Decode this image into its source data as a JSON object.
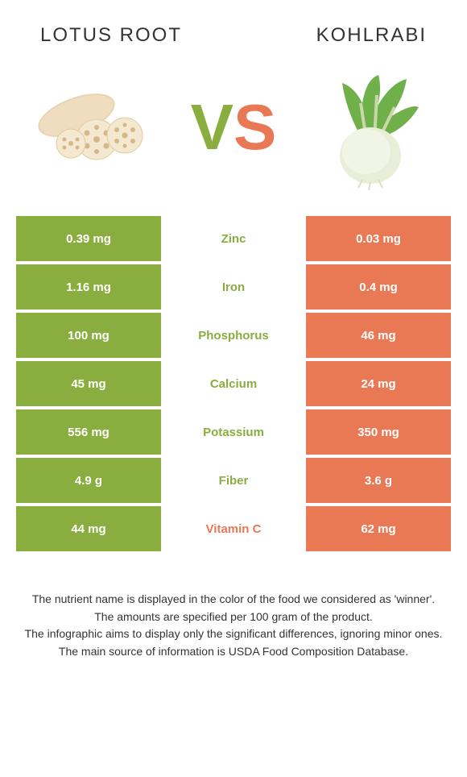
{
  "header": {
    "left_title": "LOTUS ROOT",
    "right_title": "KOHLRABI"
  },
  "vs": {
    "v": "V",
    "s": "S"
  },
  "colors": {
    "green": "#8aad3f",
    "orange": "#e97855",
    "lotus_body": "#e8d4b0",
    "lotus_slice": "#f5e8d0",
    "lotus_hole": "#d4b88a",
    "kohlrabi_bulb": "#e8eed8",
    "kohlrabi_leaf": "#6fb04a",
    "kohlrabi_stem": "#c8d8a8"
  },
  "rows": [
    {
      "left": "0.39 mg",
      "label": "Zinc",
      "right": "0.03 mg",
      "winner": "green"
    },
    {
      "left": "1.16 mg",
      "label": "Iron",
      "right": "0.4 mg",
      "winner": "green"
    },
    {
      "left": "100 mg",
      "label": "Phosphorus",
      "right": "46 mg",
      "winner": "green"
    },
    {
      "left": "45 mg",
      "label": "Calcium",
      "right": "24 mg",
      "winner": "green"
    },
    {
      "left": "556 mg",
      "label": "Potassium",
      "right": "350 mg",
      "winner": "green"
    },
    {
      "left": "4.9 g",
      "label": "Fiber",
      "right": "3.6 g",
      "winner": "green"
    },
    {
      "left": "44 mg",
      "label": "Vitamin C",
      "right": "62 mg",
      "winner": "orange"
    }
  ],
  "footer": {
    "line1": "The nutrient name is displayed in the color of the food we considered as 'winner'.",
    "line2": "The amounts are specified per 100 gram of the product.",
    "line3": "The infographic aims to display only the significant differences, ignoring minor ones.",
    "line4": "The main source of information is USDA Food Composition Database."
  }
}
